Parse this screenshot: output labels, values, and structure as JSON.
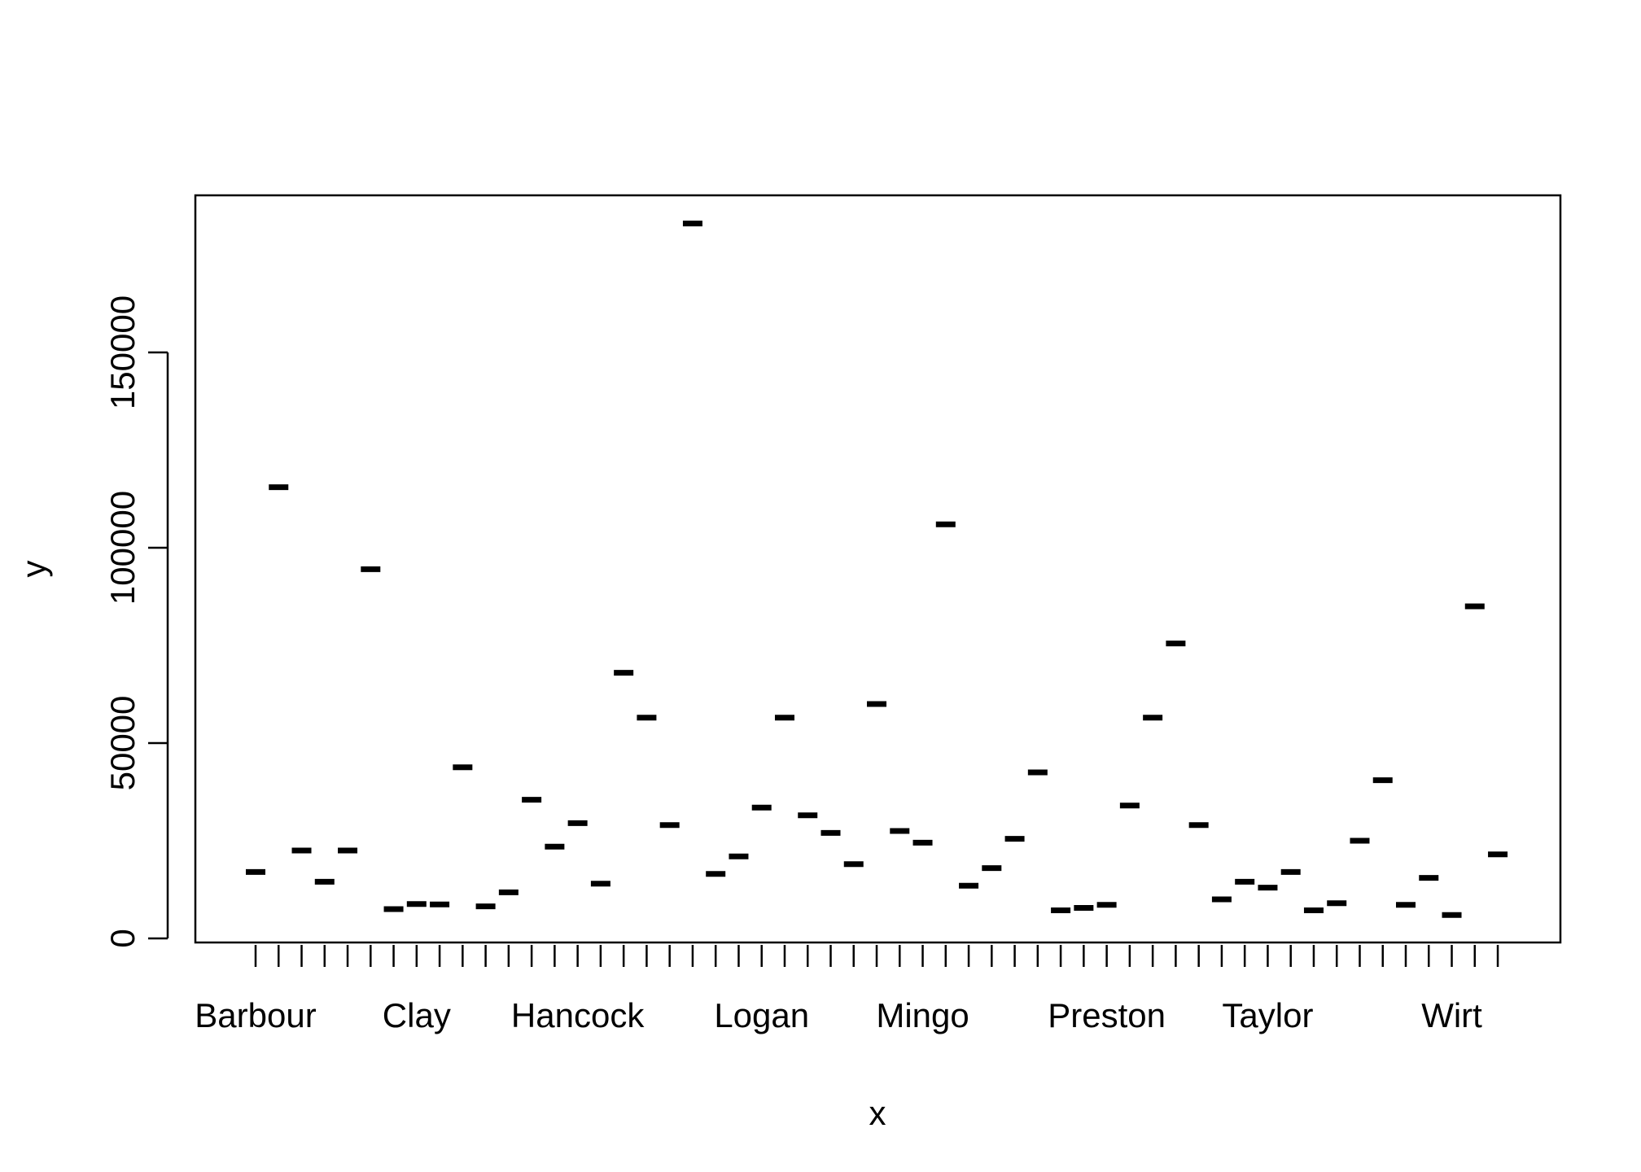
{
  "chart_data": {
    "type": "boxplot",
    "xlabel": "x",
    "ylabel": "y",
    "ylim": [
      -1000,
      189000
    ],
    "yticks": [
      0,
      50000,
      100000,
      150000
    ],
    "ytick_labels": [
      "0",
      "50000",
      "100000",
      "150000"
    ],
    "x_tick_labels": [
      "Barbour",
      "Clay",
      "Hancock",
      "Logan",
      "Mingo",
      "Preston",
      "Taylor",
      "Wirt"
    ],
    "x_label_positions": [
      1,
      8,
      15,
      23,
      30,
      38,
      45,
      53
    ],
    "category_count": 55,
    "values": [
      17000,
      115500,
      22500,
      14500,
      22500,
      94500,
      7500,
      8800,
      8700,
      43800,
      8200,
      11800,
      35500,
      23500,
      29500,
      14000,
      68000,
      56500,
      29000,
      183000,
      16500,
      21000,
      33500,
      56500,
      31500,
      27000,
      19000,
      60000,
      27500,
      24500,
      106000,
      13500,
      18000,
      25500,
      42500,
      7200,
      7800,
      8600,
      34000,
      56500,
      75500,
      29000,
      10000,
      14500,
      13000,
      17000,
      7200,
      9000,
      25000,
      40500,
      8600,
      15500,
      6000,
      85000,
      21500
    ],
    "grid": false,
    "legend": "none"
  }
}
